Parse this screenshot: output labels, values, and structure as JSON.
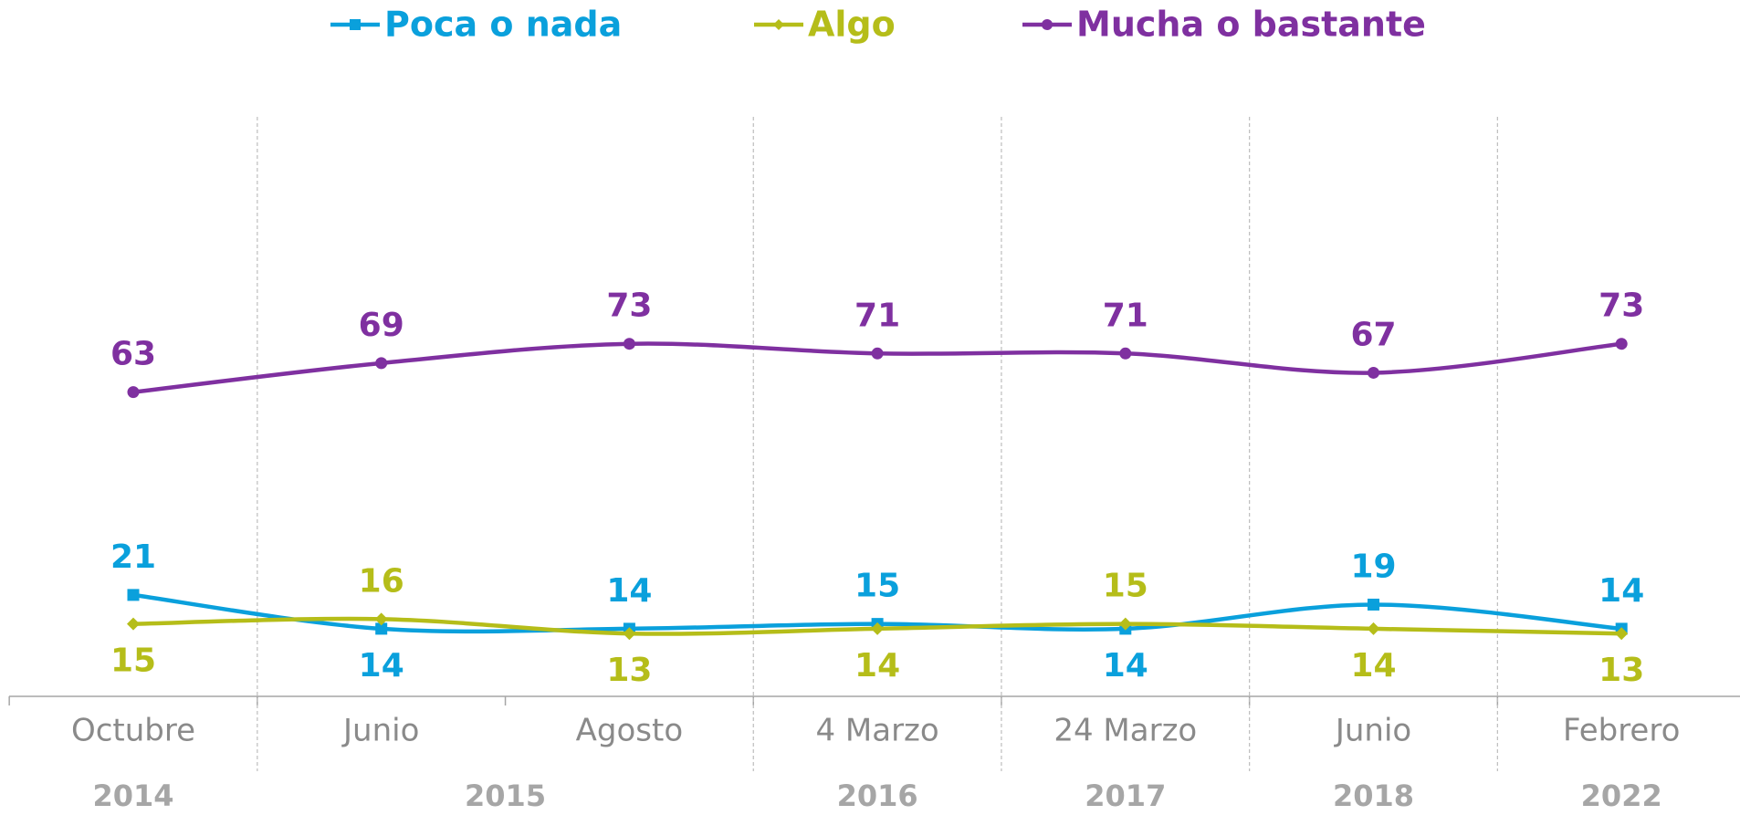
{
  "chart_data": {
    "type": "line",
    "categories": [
      "Octubre",
      "Junio",
      "Agosto",
      "4 Marzo",
      "24 Marzo",
      "Junio",
      "Febrero"
    ],
    "year_groups": [
      {
        "label": "2014",
        "count": 1
      },
      {
        "label": "2015",
        "count": 2
      },
      {
        "label": "2016",
        "count": 1
      },
      {
        "label": "2017",
        "count": 1
      },
      {
        "label": "2018",
        "count": 1
      },
      {
        "label": "2022",
        "count": 1
      }
    ],
    "ylim": [
      0,
      120
    ],
    "legend": "top",
    "series": [
      {
        "name": "Poca o nada",
        "color": "#0aa0dc",
        "marker": "square",
        "values": [
          21,
          14,
          14,
          15,
          14,
          19,
          14
        ]
      },
      {
        "name": "Algo",
        "color": "#b5bd19",
        "marker": "diamond",
        "values": [
          15,
          16,
          13,
          14,
          15,
          14,
          13
        ]
      },
      {
        "name": "Mucha o bastante",
        "color": "#7f30a0",
        "marker": "circle",
        "values": [
          63,
          69,
          73,
          71,
          71,
          67,
          73
        ]
      }
    ]
  }
}
